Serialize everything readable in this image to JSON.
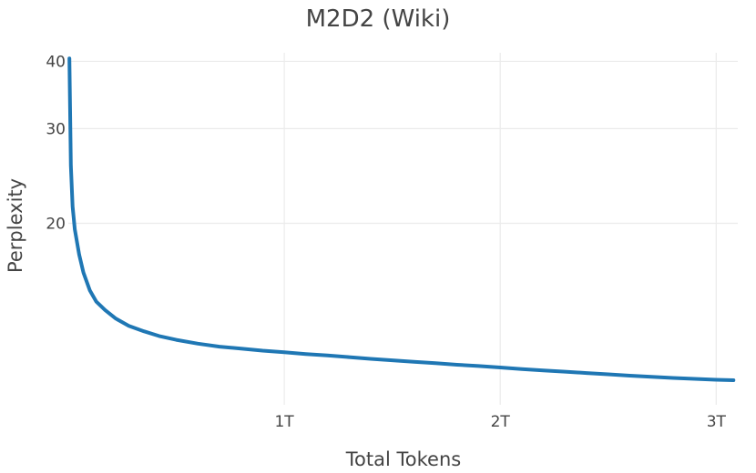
{
  "chart_data": {
    "type": "line",
    "title": "M2D2 (Wiki)",
    "xlabel": "Total Tokens",
    "ylabel": "Perplexity",
    "x_unit": "trillion tokens",
    "xlim": [
      0,
      3.1
    ],
    "ylim": [
      9.2,
      41.5
    ],
    "y_scale": "log",
    "grid": true,
    "legend": "none",
    "x_ticks": [
      {
        "value": 1,
        "label": "1T"
      },
      {
        "value": 2,
        "label": "2T"
      },
      {
        "value": 3,
        "label": "3T"
      }
    ],
    "y_ticks": [
      {
        "value": 20,
        "label": "20"
      },
      {
        "value": 30,
        "label": "30"
      },
      {
        "value": 40,
        "label": "40"
      }
    ],
    "series": [
      {
        "color": "#1f77b4",
        "x": [
          0.005,
          0.008,
          0.012,
          0.02,
          0.03,
          0.05,
          0.07,
          0.1,
          0.13,
          0.17,
          0.22,
          0.28,
          0.35,
          0.42,
          0.5,
          0.6,
          0.7,
          0.8,
          0.9,
          1.0,
          1.1,
          1.2,
          1.3,
          1.4,
          1.5,
          1.6,
          1.7,
          1.8,
          1.9,
          2.0,
          2.1,
          2.2,
          2.3,
          2.4,
          2.5,
          2.6,
          2.7,
          2.8,
          2.9,
          3.0,
          3.08
        ],
        "y": [
          40.5,
          33.0,
          25.6,
          21.5,
          19.5,
          17.5,
          16.2,
          15.0,
          14.3,
          13.8,
          13.3,
          12.9,
          12.6,
          12.35,
          12.15,
          11.95,
          11.8,
          11.7,
          11.6,
          11.52,
          11.43,
          11.36,
          11.28,
          11.2,
          11.13,
          11.06,
          10.99,
          10.92,
          10.86,
          10.79,
          10.72,
          10.66,
          10.6,
          10.54,
          10.48,
          10.42,
          10.37,
          10.32,
          10.28,
          10.24,
          10.22
        ]
      }
    ]
  }
}
